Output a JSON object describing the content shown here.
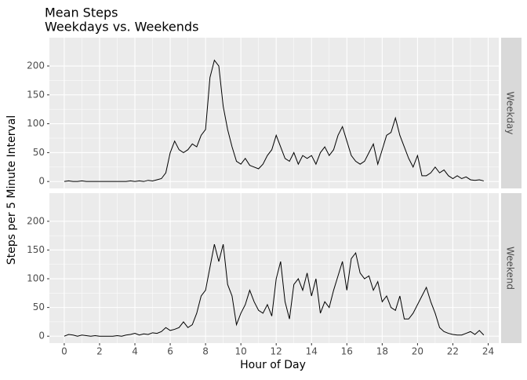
{
  "chart_data": {
    "type": "line",
    "title": "Mean Steps",
    "subtitle": "Weekdays vs. Weekends",
    "x_label": "Hour of Day",
    "y_label": "Steps per 5 Minute Interval",
    "x": [
      0,
      0.25,
      0.5,
      0.75,
      1,
      1.25,
      1.5,
      1.75,
      2,
      2.25,
      2.5,
      2.75,
      3,
      3.25,
      3.5,
      3.75,
      4,
      4.25,
      4.5,
      4.75,
      5,
      5.25,
      5.5,
      5.75,
      6,
      6.25,
      6.5,
      6.75,
      7,
      7.25,
      7.5,
      7.75,
      8,
      8.25,
      8.5,
      8.75,
      9,
      9.25,
      9.5,
      9.75,
      10,
      10.25,
      10.5,
      10.75,
      11,
      11.25,
      11.5,
      11.75,
      12,
      12.25,
      12.5,
      12.75,
      13,
      13.25,
      13.5,
      13.75,
      14,
      14.25,
      14.5,
      14.75,
      15,
      15.25,
      15.5,
      15.75,
      16,
      16.25,
      16.5,
      16.75,
      17,
      17.25,
      17.5,
      17.75,
      18,
      18.25,
      18.5,
      18.75,
      19,
      19.25,
      19.5,
      19.75,
      20,
      20.25,
      20.5,
      20.75,
      21,
      21.25,
      21.5,
      21.75,
      22,
      22.25,
      22.5,
      22.75,
      23,
      23.25,
      23.5,
      23.75
    ],
    "series": [
      {
        "name": "Weekday",
        "color": "#000000",
        "values": [
          0,
          1,
          0,
          0,
          1,
          0,
          0,
          0,
          0,
          0,
          0,
          0,
          0,
          0,
          0,
          1,
          0,
          1,
          0,
          2,
          1,
          3,
          5,
          15,
          50,
          70,
          55,
          50,
          55,
          65,
          60,
          80,
          90,
          180,
          210,
          200,
          130,
          90,
          60,
          35,
          30,
          40,
          28,
          25,
          22,
          30,
          45,
          55,
          80,
          60,
          40,
          35,
          50,
          30,
          45,
          40,
          45,
          30,
          50,
          60,
          45,
          55,
          80,
          95,
          70,
          45,
          35,
          30,
          35,
          50,
          65,
          30,
          55,
          80,
          85,
          110,
          80,
          60,
          40,
          25,
          45,
          10,
          10,
          15,
          25,
          15,
          20,
          10,
          5,
          10,
          5,
          8,
          3,
          2,
          3,
          1
        ]
      },
      {
        "name": "Weekend",
        "color": "#000000",
        "values": [
          0,
          3,
          2,
          0,
          2,
          1,
          0,
          1,
          0,
          0,
          0,
          0,
          1,
          0,
          2,
          3,
          5,
          2,
          4,
          3,
          6,
          5,
          8,
          15,
          10,
          12,
          15,
          25,
          15,
          20,
          40,
          70,
          80,
          120,
          160,
          130,
          160,
          90,
          70,
          20,
          40,
          55,
          80,
          60,
          45,
          40,
          55,
          35,
          100,
          130,
          60,
          30,
          90,
          100,
          80,
          110,
          70,
          100,
          40,
          60,
          50,
          80,
          105,
          130,
          80,
          135,
          145,
          110,
          100,
          105,
          80,
          95,
          60,
          70,
          50,
          45,
          70,
          30,
          30,
          40,
          55,
          70,
          85,
          60,
          40,
          15,
          8,
          5,
          3,
          2,
          2,
          5,
          8,
          3,
          10,
          2
        ]
      }
    ],
    "xlim": [
      -0.84,
      24.6
    ],
    "ylim": [
      -12,
      249
    ],
    "xticks": [
      0,
      2,
      4,
      6,
      8,
      10,
      12,
      14,
      16,
      18,
      20,
      22,
      24
    ],
    "yticks": [
      0,
      50,
      100,
      150,
      200
    ],
    "grid": true
  }
}
